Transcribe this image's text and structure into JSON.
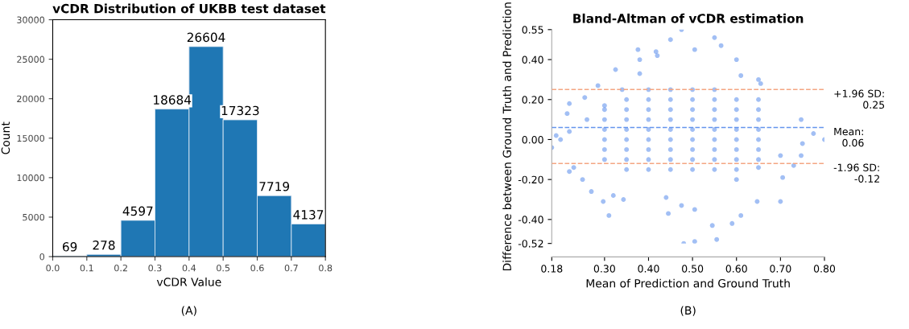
{
  "chart_data": [
    {
      "type": "histogram",
      "title": "vCDR Distribution of UKBB test dataset",
      "xlabel": "vCDR Value",
      "ylabel": "Count",
      "bins": [
        0,
        0.1,
        0.2,
        0.3,
        0.4,
        0.5,
        0.6,
        0.7,
        0.8
      ],
      "values": [
        69,
        278,
        4597,
        18684,
        26604,
        17323,
        7719,
        4137
      ],
      "color": "#1f77b4",
      "data_labels": true,
      "xlim": [
        0,
        0.8
      ],
      "xticks": [
        {
          "value": 0,
          "label": "0.0"
        },
        {
          "value": 0.1,
          "label": "0.1"
        },
        {
          "value": 0.2,
          "label": "0.2"
        },
        {
          "value": 0.3,
          "label": "0.3"
        },
        {
          "value": 0.4,
          "label": "0.4"
        },
        {
          "value": 0.5,
          "label": "0.5"
        },
        {
          "value": 0.6,
          "label": "0.6"
        },
        {
          "value": 0.7,
          "label": "0.7"
        },
        {
          "value": 0.8,
          "label": "0.8"
        }
      ],
      "ylim": [
        0,
        30000
      ],
      "yticks": [
        0,
        5000,
        10000,
        15000,
        20000,
        25000,
        30000
      ],
      "annotations": [
        "(A)"
      ]
    },
    {
      "type": "scatter",
      "title": "Bland-Altman of vCDR estimation",
      "xlabel": "Mean of Prediction and Ground Truth",
      "ylabel": "Difference between Ground Truth and Prediction",
      "marker": "circle",
      "series": [
        {
          "color": "#6495ed",
          "x": [
            0.18,
            0.19,
            0.2,
            0.22,
            0.215,
            0.22,
            0.22,
            0.23,
            0.25,
            0.255,
            0.27,
            0.285,
            0.297,
            0.31,
            0.32,
            0.325,
            0.343,
            0.376,
            0.38,
            0.417,
            0.44,
            0.445,
            0.45,
            0.475,
            0.475,
            0.48,
            0.505,
            0.505,
            0.505,
            0.55,
            0.565,
            0.545,
            0.555,
            0.59,
            0.61,
            0.6,
            0.61,
            0.65,
            0.655,
            0.647,
            0.7,
            0.705,
            0.747,
            0.8,
            0.775,
            0.747,
            0.73,
            0.26,
            0.3,
            0.34,
            0.38,
            0.42,
            0.6,
            0.65,
            0.7,
            0.75,
            0.3,
            0.3,
            0.3,
            0.3,
            0.3,
            0.3,
            0.35,
            0.35,
            0.35,
            0.35,
            0.35,
            0.35,
            0.35,
            0.35,
            0.4,
            0.4,
            0.4,
            0.4,
            0.4,
            0.4,
            0.4,
            0.4,
            0.4,
            0.45,
            0.45,
            0.45,
            0.45,
            0.45,
            0.45,
            0.45,
            0.45,
            0.45,
            0.5,
            0.5,
            0.5,
            0.5,
            0.5,
            0.5,
            0.5,
            0.5,
            0.5,
            0.55,
            0.55,
            0.55,
            0.55,
            0.55,
            0.55,
            0.55,
            0.55,
            0.55,
            0.6,
            0.6,
            0.6,
            0.6,
            0.6,
            0.6,
            0.6,
            0.6,
            0.65,
            0.65,
            0.65,
            0.65,
            0.65,
            0.65,
            0.65
          ],
          "values": [
            -0.04,
            0.02,
            0.0,
            0.18,
            0.13,
            0.04,
            -0.16,
            -0.14,
            -0.2,
            0.21,
            -0.26,
            0.27,
            -0.31,
            -0.38,
            -0.28,
            0.35,
            -0.3,
            0.45,
            0.4,
            0.44,
            -0.29,
            -0.37,
            0.5,
            0.55,
            -0.33,
            -0.52,
            -0.51,
            -0.35,
            0.45,
            0.51,
            0.47,
            -0.43,
            -0.5,
            -0.42,
            -0.38,
            0.4,
            0.32,
            0.3,
            0.28,
            -0.31,
            -0.31,
            -0.19,
            0.1,
            0.0,
            0.03,
            -0.08,
            -0.13,
            0.1,
            0.17,
            0.25,
            0.33,
            0.42,
            -0.2,
            -0.14,
            -0.08,
            -0.02,
            -0.1,
            -0.05,
            0.0,
            0.05,
            0.1,
            0.15,
            -0.15,
            -0.1,
            -0.05,
            0.0,
            0.05,
            0.1,
            0.15,
            0.2,
            -0.15,
            -0.1,
            -0.05,
            0.0,
            0.05,
            0.1,
            0.15,
            0.2,
            0.25,
            -0.15,
            -0.1,
            -0.05,
            0.0,
            0.05,
            0.1,
            0.15,
            0.2,
            0.25,
            -0.15,
            -0.1,
            -0.05,
            0.0,
            0.05,
            0.1,
            0.15,
            0.2,
            0.25,
            -0.15,
            -0.1,
            -0.05,
            0.0,
            0.05,
            0.1,
            0.15,
            0.2,
            0.25,
            -0.15,
            -0.1,
            -0.05,
            0.0,
            0.05,
            0.1,
            0.15,
            0.2,
            -0.1,
            -0.05,
            0.0,
            0.05,
            0.1,
            0.15,
            0.2
          ]
        }
      ],
      "ref_lines": [
        {
          "axis": "y",
          "value": 0.25,
          "label": "+1.96 SD:\n0.25",
          "color": "#f4a582",
          "line_style": "dashed"
        },
        {
          "axis": "y",
          "value": 0.06,
          "label": "Mean:\n0.06",
          "color": "#6495ed",
          "line_style": "dashed"
        },
        {
          "axis": "y",
          "value": -0.12,
          "label": "-1.96 SD:\n-0.12",
          "color": "#f4a582",
          "line_style": "dashed"
        }
      ],
      "xlim": [
        0.18,
        0.8
      ],
      "xticks": [
        {
          "value": 0.18,
          "label": "0.18"
        },
        {
          "value": 0.3,
          "label": "0.30"
        },
        {
          "value": 0.4,
          "label": "0.40"
        },
        {
          "value": 0.5,
          "label": "0.50"
        },
        {
          "value": 0.6,
          "label": "0.60"
        },
        {
          "value": 0.7,
          "label": "0.70"
        },
        {
          "value": 0.8,
          "label": "0.80"
        }
      ],
      "ylim": [
        -0.52,
        0.55
      ],
      "yticks": [
        {
          "value": 0.55,
          "label": "0.55"
        },
        {
          "value": 0.4,
          "label": "0.40"
        },
        {
          "value": 0.2,
          "label": "0.20"
        },
        {
          "value": 0.0,
          "label": "0.00"
        },
        {
          "value": -0.2,
          "label": "-0.20"
        },
        {
          "value": -0.4,
          "label": "-0.40"
        },
        {
          "value": -0.52,
          "label": "-0.52"
        }
      ],
      "annotations": [
        "(B)"
      ]
    }
  ]
}
